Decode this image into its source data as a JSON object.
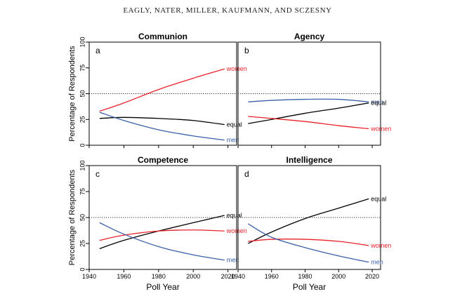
{
  "header": {
    "running_head": "EAGLY, NATER, MILLER, KAUFMANN, AND SCZESNY"
  },
  "figure": {
    "y_axis_label": "Percentage of Respondents",
    "x_axis_label": "Poll Year",
    "y_ticks": [
      "0",
      "25",
      "50",
      "75",
      "100"
    ],
    "x_ticks": [
      "1940",
      "1960",
      "1980",
      "2000",
      "2020"
    ]
  },
  "colors": {
    "women": "#e8212a",
    "men": "#3a5fa8",
    "equal": "#000000",
    "reference": "#333333"
  },
  "chart_data": [
    {
      "type": "line",
      "panel_letter": "a",
      "title": "Communion",
      "xlabel": "",
      "ylabel": "Percentage of Respondents",
      "xlim": [
        1940,
        2025
      ],
      "ylim": [
        0,
        100
      ],
      "reference_line": 50,
      "x": [
        1946,
        1960,
        1980,
        2000,
        2018
      ],
      "series": [
        {
          "name": "women",
          "values": [
            33,
            41,
            54,
            65,
            74
          ]
        },
        {
          "name": "equal",
          "values": [
            26,
            27,
            26,
            24,
            20
          ]
        },
        {
          "name": "men",
          "values": [
            32,
            24,
            15,
            9,
            5
          ]
        }
      ]
    },
    {
      "type": "line",
      "panel_letter": "b",
      "title": "Agency",
      "xlabel": "",
      "ylabel": "",
      "xlim": [
        1940,
        2025
      ],
      "ylim": [
        0,
        100
      ],
      "reference_line": 50,
      "x": [
        1946,
        1960,
        1980,
        2000,
        2018
      ],
      "series": [
        {
          "name": "men",
          "values": [
            42,
            43.5,
            44.5,
            44.5,
            42
          ]
        },
        {
          "name": "equal",
          "values": [
            21,
            25,
            31,
            36,
            41
          ]
        },
        {
          "name": "women",
          "values": [
            28,
            26,
            23,
            19,
            16
          ]
        }
      ]
    },
    {
      "type": "line",
      "panel_letter": "c",
      "title": "Competence",
      "xlabel": "Poll Year",
      "ylabel": "Percentage of Respondents",
      "xlim": [
        1940,
        2025
      ],
      "ylim": [
        0,
        100
      ],
      "reference_line": 50,
      "x": [
        1946,
        1960,
        1980,
        2000,
        2018
      ],
      "series": [
        {
          "name": "equal",
          "values": [
            20,
            28,
            37,
            45,
            52
          ]
        },
        {
          "name": "women",
          "values": [
            28,
            33,
            37,
            38,
            37
          ]
        },
        {
          "name": "men",
          "values": [
            45,
            34,
            22,
            14,
            9
          ]
        }
      ]
    },
    {
      "type": "line",
      "panel_letter": "d",
      "title": "Intelligence",
      "xlabel": "Poll Year",
      "ylabel": "",
      "xlim": [
        1940,
        2025
      ],
      "ylim": [
        0,
        100
      ],
      "reference_line": 50,
      "x": [
        1946,
        1960,
        1980,
        2000,
        2018
      ],
      "series": [
        {
          "name": "equal",
          "values": [
            25,
            36,
            49,
            59,
            68
          ]
        },
        {
          "name": "women",
          "values": [
            27,
            29,
            29,
            27,
            23
          ]
        },
        {
          "name": "men",
          "values": [
            44,
            31,
            21,
            13,
            7
          ]
        }
      ]
    }
  ]
}
